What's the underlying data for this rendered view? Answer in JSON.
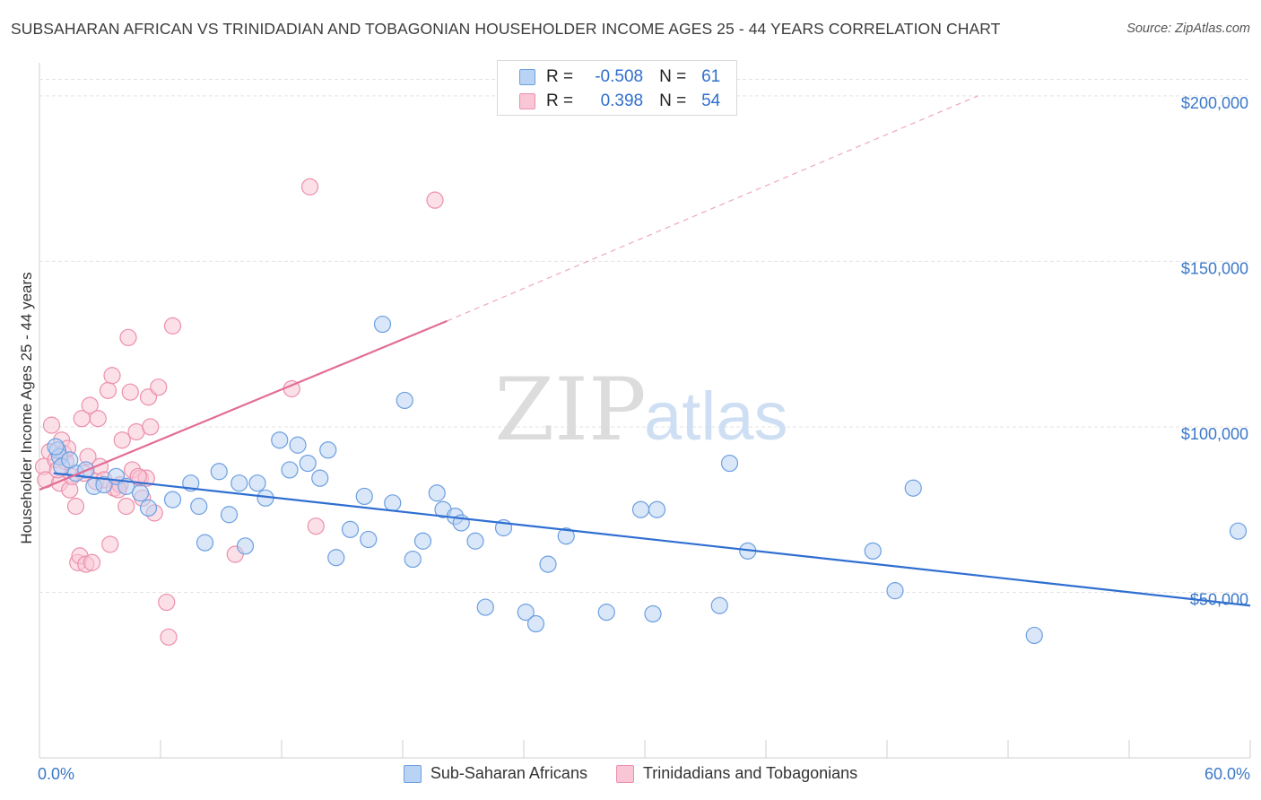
{
  "header": {
    "title": "SUBSAHARAN AFRICAN VS TRINIDADIAN AND TOBAGONIAN HOUSEHOLDER INCOME AGES 25 - 44 YEARS CORRELATION CHART",
    "source": "Source: ZipAtlas.com"
  },
  "watermark": {
    "zip": "ZIP",
    "atlas": "atlas"
  },
  "legend": {
    "rows": [
      {
        "r_label": "R =",
        "r_value": "-0.508",
        "n_label": "N =",
        "n_value": "61"
      },
      {
        "r_label": "R =",
        "r_value": "0.398",
        "n_label": "N =",
        "n_value": "54"
      }
    ]
  },
  "colors": {
    "blue_fill": "#b9d3f4",
    "blue_stroke": "#6c9fe0",
    "blue_line": "#2f6fd1",
    "pink_fill": "#f9c6d6",
    "pink_stroke": "#ec8fac",
    "pink_line": "#e36d96",
    "grid": "#e3e3e3",
    "tick_label": "#3a78c8"
  },
  "chart_data": {
    "type": "scatter",
    "title": "SUBSAHARAN AFRICAN VS TRINIDADIAN AND TOBAGONIAN HOUSEHOLDER INCOME AGES 25 - 44 YEARS CORRELATION CHART",
    "xlabel": "",
    "ylabel": "Householder Income Ages 25 - 44 years",
    "xlim": [
      0,
      60
    ],
    "ylim": [
      0,
      210000
    ],
    "x_tick_labels": [
      "0.0%",
      "60.0%"
    ],
    "y_ticks": [
      50000,
      100000,
      150000,
      200000
    ],
    "y_tick_labels": [
      "$50,000",
      "$100,000",
      "$150,000",
      "$200,000"
    ],
    "grid": true,
    "legend_position": "top-center",
    "series": [
      {
        "name": "Sub-Saharan Africans",
        "r": -0.508,
        "n": 61,
        "trend": {
          "x0": 0.7,
          "y0": 86000,
          "x1": 60,
          "y1": 46000,
          "style": "solid"
        },
        "points": [
          [
            0.9,
            93000
          ],
          [
            1.0,
            91000
          ],
          [
            1.1,
            88000
          ],
          [
            1.8,
            86000
          ],
          [
            2.3,
            87000
          ],
          [
            2.7,
            82000
          ],
          [
            3.2,
            82500
          ],
          [
            3.8,
            85000
          ],
          [
            4.3,
            82000
          ],
          [
            5.0,
            80000
          ],
          [
            5.4,
            75500
          ],
          [
            6.6,
            78000
          ],
          [
            7.5,
            83000
          ],
          [
            7.9,
            76000
          ],
          [
            8.2,
            65000
          ],
          [
            8.9,
            86500
          ],
          [
            9.4,
            73500
          ],
          [
            9.9,
            83000
          ],
          [
            10.2,
            64000
          ],
          [
            10.8,
            83000
          ],
          [
            11.2,
            78500
          ],
          [
            11.9,
            96000
          ],
          [
            12.4,
            87000
          ],
          [
            12.8,
            94500
          ],
          [
            13.3,
            89000
          ],
          [
            13.9,
            84500
          ],
          [
            14.3,
            93000
          ],
          [
            14.7,
            60500
          ],
          [
            15.4,
            69000
          ],
          [
            16.1,
            79000
          ],
          [
            16.3,
            66000
          ],
          [
            17.0,
            131000
          ],
          [
            17.5,
            77000
          ],
          [
            18.1,
            108000
          ],
          [
            18.5,
            60000
          ],
          [
            19.0,
            65500
          ],
          [
            19.7,
            80000
          ],
          [
            20.0,
            75000
          ],
          [
            20.6,
            73000
          ],
          [
            20.9,
            71000
          ],
          [
            21.6,
            65500
          ],
          [
            22.1,
            45500
          ],
          [
            23.0,
            69500
          ],
          [
            24.1,
            44000
          ],
          [
            24.6,
            40500
          ],
          [
            25.2,
            58500
          ],
          [
            26.1,
            67000
          ],
          [
            28.1,
            44000
          ],
          [
            29.8,
            75000
          ],
          [
            30.4,
            43500
          ],
          [
            30.6,
            75000
          ],
          [
            33.7,
            46000
          ],
          [
            34.2,
            89000
          ],
          [
            35.1,
            62500
          ],
          [
            41.3,
            62500
          ],
          [
            42.4,
            50500
          ],
          [
            43.3,
            81500
          ],
          [
            49.3,
            37000
          ],
          [
            59.4,
            68500
          ],
          [
            0.8,
            94000
          ],
          [
            1.5,
            90000
          ]
        ]
      },
      {
        "name": "Trinidadians and Tobagonians",
        "r": 0.398,
        "n": 54,
        "trend": {
          "x0": 0.0,
          "y0": 81000,
          "x1": 20.2,
          "y1": 132000,
          "style": "solid"
        },
        "trend_extension": {
          "x0": 20.2,
          "y0": 132000,
          "x1": 46.5,
          "y1": 200000,
          "style": "dashed"
        },
        "points": [
          [
            0.2,
            88000
          ],
          [
            0.3,
            84000
          ],
          [
            0.5,
            92500
          ],
          [
            0.6,
            100500
          ],
          [
            0.8,
            90000
          ],
          [
            1.0,
            83000
          ],
          [
            1.1,
            96000
          ],
          [
            1.2,
            92000
          ],
          [
            1.3,
            89500
          ],
          [
            1.5,
            81000
          ],
          [
            1.6,
            85000
          ],
          [
            1.8,
            76000
          ],
          [
            1.9,
            59000
          ],
          [
            2.0,
            61000
          ],
          [
            2.1,
            102500
          ],
          [
            2.3,
            58500
          ],
          [
            2.4,
            91000
          ],
          [
            2.5,
            106500
          ],
          [
            2.6,
            59000
          ],
          [
            2.8,
            83500
          ],
          [
            2.9,
            102500
          ],
          [
            3.0,
            88000
          ],
          [
            3.2,
            84000
          ],
          [
            3.4,
            111000
          ],
          [
            3.5,
            64500
          ],
          [
            3.6,
            115500
          ],
          [
            3.7,
            81500
          ],
          [
            4.0,
            82500
          ],
          [
            4.1,
            96000
          ],
          [
            4.3,
            76000
          ],
          [
            4.4,
            127000
          ],
          [
            4.5,
            110500
          ],
          [
            4.6,
            87000
          ],
          [
            4.8,
            98500
          ],
          [
            5.0,
            84500
          ],
          [
            5.1,
            78500
          ],
          [
            5.3,
            84500
          ],
          [
            5.4,
            109000
          ],
          [
            5.5,
            100000
          ],
          [
            5.7,
            74000
          ],
          [
            5.9,
            112000
          ],
          [
            6.3,
            47000
          ],
          [
            6.4,
            36500
          ],
          [
            6.6,
            130500
          ],
          [
            9.7,
            61500
          ],
          [
            12.5,
            111500
          ],
          [
            13.7,
            70000
          ],
          [
            13.4,
            172500
          ],
          [
            19.6,
            168500
          ],
          [
            0.9,
            87000
          ],
          [
            1.4,
            93500
          ],
          [
            2.2,
            86000
          ],
          [
            3.9,
            81000
          ],
          [
            4.9,
            85000
          ]
        ]
      }
    ]
  },
  "bottom_legend": {
    "items": [
      {
        "label": "Sub-Saharan Africans"
      },
      {
        "label": "Trinidadians and Tobagonians"
      }
    ]
  }
}
